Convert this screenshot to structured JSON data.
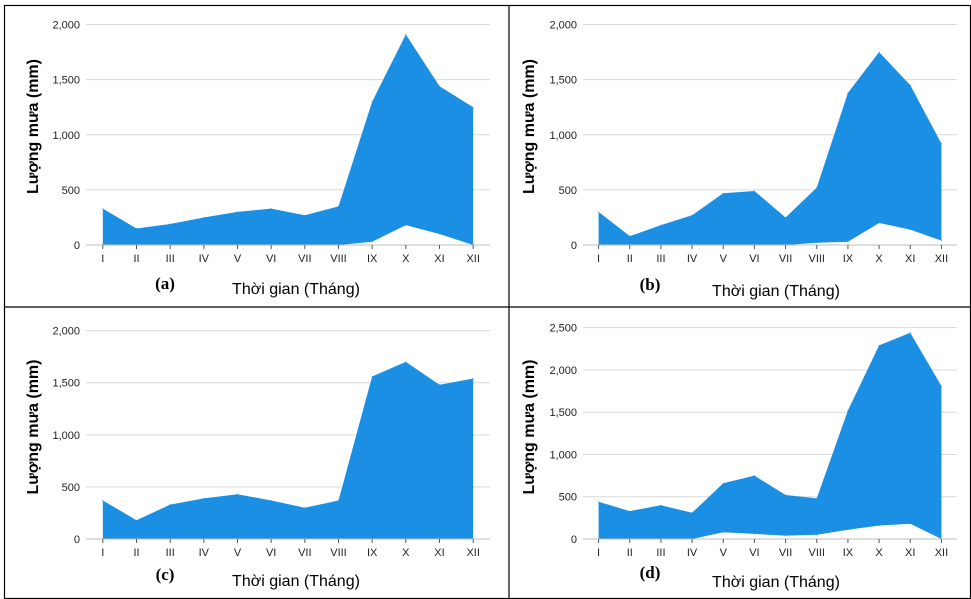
{
  "chart_data": [
    {
      "type": "area",
      "panel_label": "(a)",
      "xlabel": "Thời gian (Tháng)",
      "ylabel": "Lượng mưa (mm)",
      "categories": [
        "I",
        "II",
        "III",
        "IV",
        "V",
        "VI",
        "VII",
        "VIII",
        "IX",
        "X",
        "XI",
        "XII"
      ],
      "yticks": [
        "0",
        "500",
        "1,000",
        "1,500",
        "2,000"
      ],
      "ylim": [
        0,
        2150
      ],
      "grid": true,
      "series": [
        {
          "values": [
            330,
            150,
            190,
            250,
            300,
            330,
            270,
            350,
            1300,
            1910,
            1440,
            1250
          ]
        },
        {
          "values": [
            0,
            0,
            0,
            0,
            0,
            0,
            0,
            0,
            30,
            180,
            100,
            0
          ]
        }
      ],
      "color": "#1a8fe3"
    },
    {
      "type": "area",
      "panel_label": "(b)",
      "xlabel": "Thời gian (Tháng)",
      "ylabel": "Lượng mưa (mm)",
      "categories": [
        "I",
        "II",
        "III",
        "IV",
        "V",
        "VI",
        "VII",
        "VIII",
        "IX",
        "X",
        "XI",
        "XII"
      ],
      "yticks": [
        "0",
        "500",
        "1,000",
        "1,500",
        "2,000"
      ],
      "ylim": [
        0,
        2150
      ],
      "grid": true,
      "series": [
        {
          "values": [
            300,
            80,
            180,
            270,
            470,
            490,
            250,
            520,
            1380,
            1750,
            1450,
            920
          ]
        },
        {
          "values": [
            0,
            0,
            0,
            0,
            0,
            0,
            0,
            20,
            30,
            200,
            140,
            40
          ]
        }
      ],
      "color": "#1a8fe3"
    },
    {
      "type": "area",
      "panel_label": "(c)",
      "xlabel": "Thời gian (Tháng)",
      "ylabel": "Lượng mưa (mm)",
      "categories": [
        "I",
        "II",
        "III",
        "IV",
        "V",
        "VI",
        "VII",
        "VIII",
        "IX",
        "X",
        "XI",
        "XII"
      ],
      "yticks": [
        "0",
        "500",
        "1,000",
        "1,500",
        "2,000"
      ],
      "ylim": [
        0,
        2150
      ],
      "grid": true,
      "series": [
        {
          "values": [
            370,
            180,
            330,
            390,
            430,
            370,
            300,
            370,
            1560,
            1700,
            1480,
            1540
          ]
        },
        {
          "values": [
            0,
            0,
            0,
            0,
            0,
            0,
            0,
            0,
            0,
            0,
            0,
            0
          ]
        }
      ],
      "color": "#1a8fe3"
    },
    {
      "type": "area",
      "panel_label": "(d)",
      "xlabel": "Thời gian (Tháng)",
      "ylabel": "Lượng mưa (mm)",
      "categories": [
        "I",
        "II",
        "III",
        "IV",
        "V",
        "VI",
        "VII",
        "VIII",
        "IX",
        "X",
        "XI",
        "XII"
      ],
      "yticks": [
        "0",
        "500",
        "1,000",
        "1,500",
        "2,000",
        "2,500"
      ],
      "ylim": [
        0,
        2650
      ],
      "grid": true,
      "series": [
        {
          "values": [
            440,
            330,
            400,
            310,
            660,
            750,
            520,
            480,
            1520,
            2290,
            2440,
            1810
          ]
        },
        {
          "values": [
            0,
            0,
            0,
            0,
            80,
            60,
            40,
            50,
            110,
            160,
            180,
            0
          ]
        }
      ],
      "color": "#1a8fe3"
    }
  ]
}
